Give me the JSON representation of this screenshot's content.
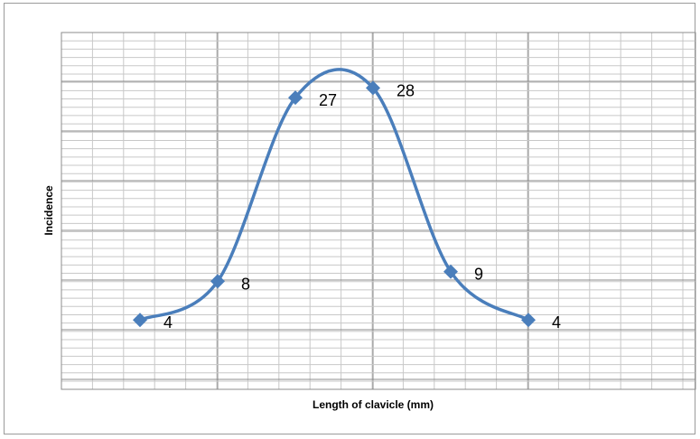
{
  "chart_data": {
    "type": "line",
    "title": "",
    "xlabel": "Length of clavicle (mm)",
    "ylabel": "Incidence",
    "smooth": true,
    "markers": "diamond",
    "grid": "on",
    "legend": "none",
    "x_tick_labels_shown": false,
    "y_tick_labels_shown": false,
    "x": [
      1,
      2,
      3,
      4,
      5,
      6
    ],
    "ylim": [
      0,
      32
    ],
    "series": [
      {
        "color": "#4a7ebb",
        "values": [
          4,
          8,
          27,
          28,
          9,
          4
        ],
        "labels": [
          "4",
          "8",
          "27",
          "28",
          "9",
          "4"
        ]
      }
    ]
  }
}
